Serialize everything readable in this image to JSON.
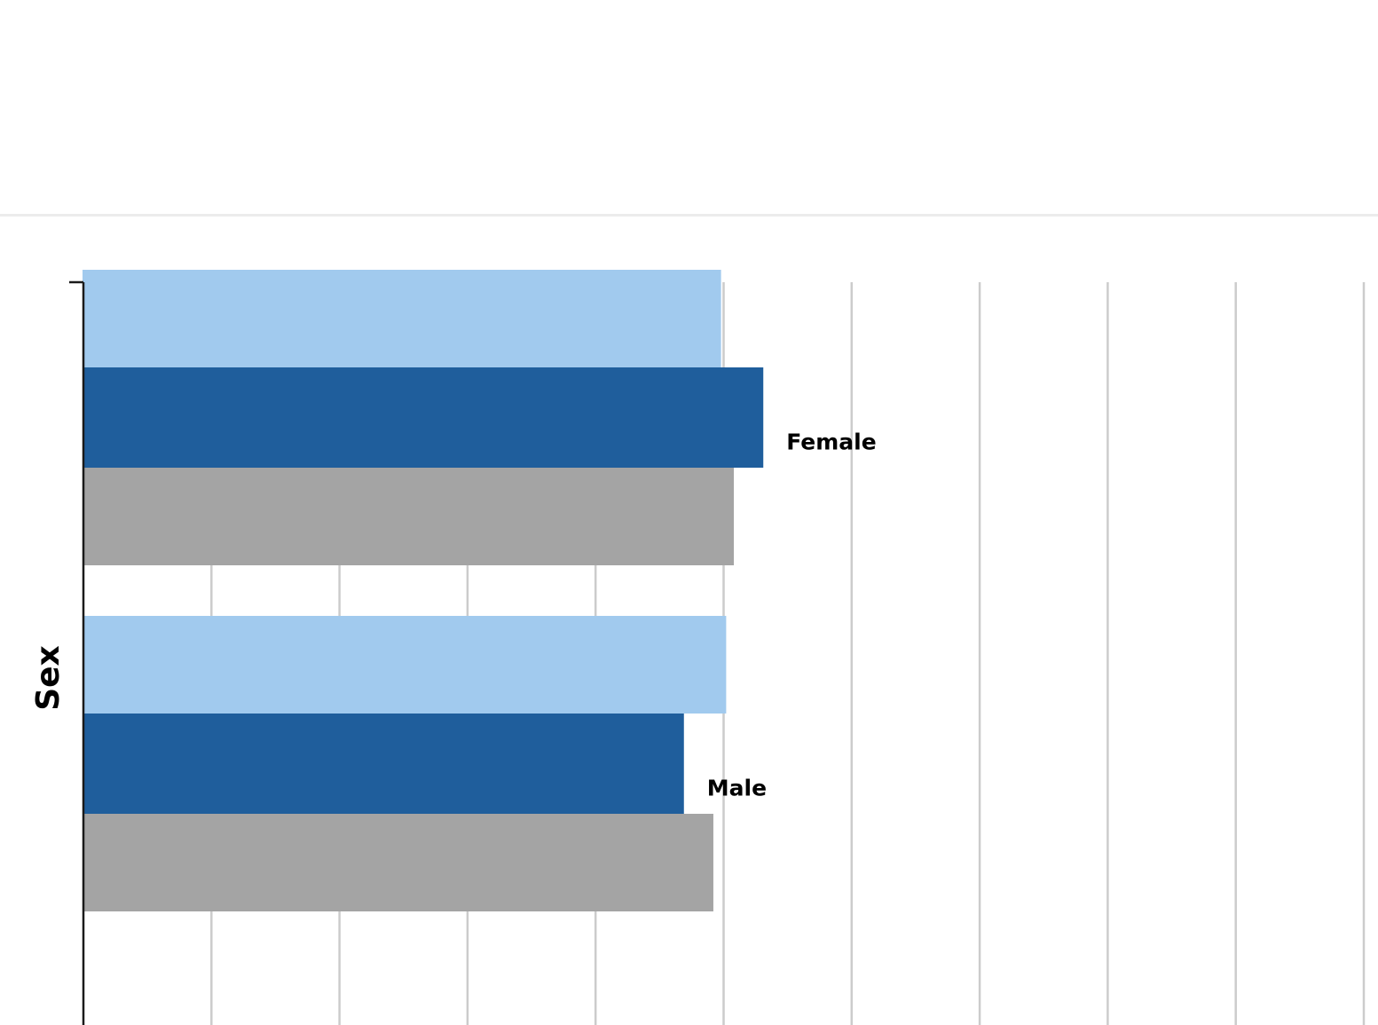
{
  "chart_data": {
    "type": "bar",
    "orientation": "horizontal",
    "ylabel": "Sex",
    "xlabel": "",
    "categories": [
      "Female",
      "Male"
    ],
    "series": [
      {
        "color": "#a1caee",
        "values": [
          4.98,
          5.02
        ]
      },
      {
        "color": "#1f5e9c",
        "values": [
          5.31,
          4.69
        ]
      },
      {
        "color": "#a4a4a4",
        "values": [
          5.08,
          4.92
        ]
      }
    ],
    "xlim": [
      0,
      10
    ],
    "grid": true
  },
  "colors": {
    "gridline": "#cccccc",
    "axis": "#1a1a1a",
    "divider": "#ececec"
  }
}
